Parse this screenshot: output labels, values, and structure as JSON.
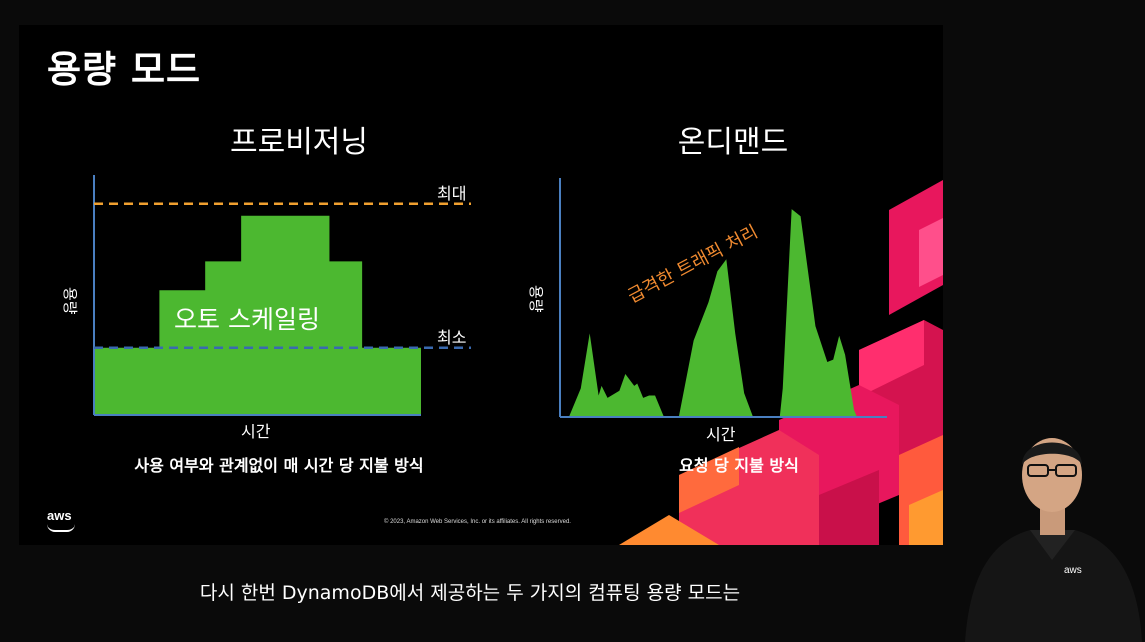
{
  "slide": {
    "title": "용량 모드",
    "aws_logo": "aws",
    "copyright": "© 2023, Amazon Web Services, Inc. or its affiliates. All rights reserved."
  },
  "subtitle": "다시 한번 DynamoDB에서 제공하는 두 가지의 컴퓨팅 용량 모드는",
  "presenter": {
    "shirt_logo": "aws"
  },
  "colors": {
    "fill_green": "#4cb830",
    "axis_blue": "#4a7fc0",
    "max_line": "#f0a030",
    "min_line": "#3a6ab0",
    "annotation_orange": "#f08a30",
    "accent_pink": "#e8175d"
  },
  "chart_data": [
    {
      "type": "area",
      "title": "프로비저닝",
      "xlabel": "시간",
      "ylabel": "용량",
      "caption": "사용 여부와 관계없이 매 시간 당 지불 방식",
      "annotation": "오토 스케일링",
      "max_label": "최대",
      "min_label": "최소",
      "ylim": [
        0,
        10
      ],
      "max_value": 8.8,
      "min_value": 2.8,
      "steps": [
        {
          "x_start": 0,
          "x_end": 20,
          "value": 2.8
        },
        {
          "x_start": 20,
          "x_end": 34,
          "value": 5.2
        },
        {
          "x_start": 34,
          "x_end": 45,
          "value": 6.4
        },
        {
          "x_start": 45,
          "x_end": 72,
          "value": 8.3
        },
        {
          "x_start": 72,
          "x_end": 82,
          "value": 6.4
        },
        {
          "x_start": 82,
          "x_end": 100,
          "value": 2.8
        }
      ]
    },
    {
      "type": "area",
      "title": "온디맨드",
      "xlabel": "시간",
      "ylabel": "용량",
      "caption": "요청 당 지불 방식",
      "annotation": "급격한 트래픽 처리",
      "ylim": [
        0,
        10
      ],
      "x": [
        0,
        3,
        7,
        10,
        13,
        14,
        16,
        20,
        22,
        25,
        26,
        28,
        30,
        32,
        35,
        40,
        45,
        50,
        53,
        56,
        59,
        62,
        65,
        70,
        74,
        75,
        78,
        81,
        86,
        90,
        92,
        94,
        96,
        99,
        100
      ],
      "values": [
        0,
        0,
        1.2,
        3.5,
        0.9,
        1.3,
        0.8,
        1.1,
        1.8,
        1.3,
        1.4,
        0.8,
        0.9,
        0.9,
        0,
        0,
        3.2,
        4.8,
        6.1,
        6.6,
        3.5,
        1.0,
        0,
        0,
        0,
        1.2,
        8.7,
        8.4,
        3.8,
        2.3,
        2.4,
        3.4,
        2.6,
        0.3,
        0
      ]
    }
  ]
}
